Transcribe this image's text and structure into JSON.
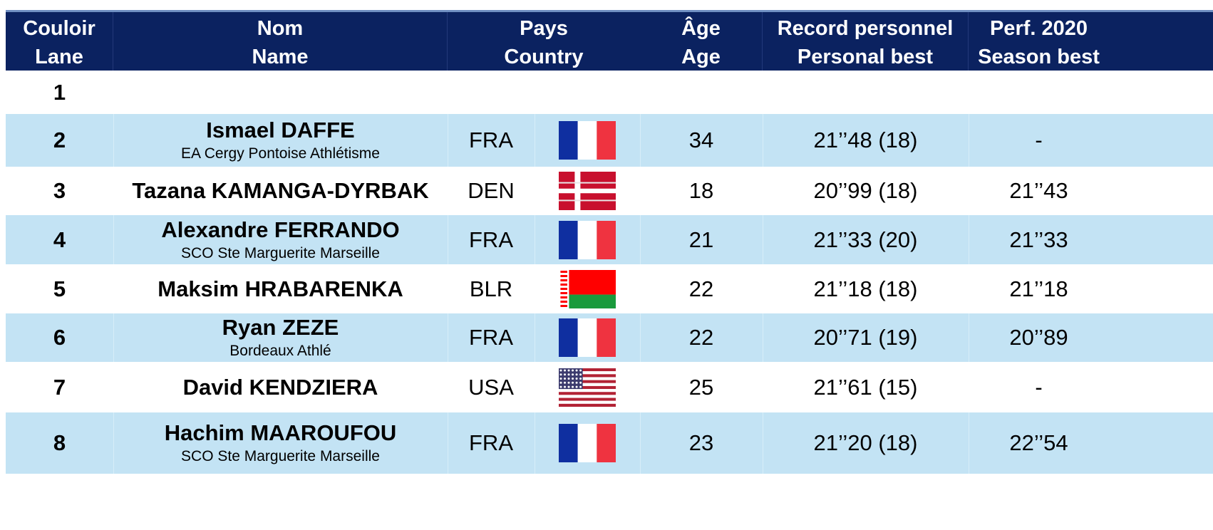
{
  "header": {
    "lane": [
      "Couloir",
      "Lane"
    ],
    "name": [
      "Nom",
      "Name"
    ],
    "country": [
      "Pays",
      "Country"
    ],
    "age": [
      "Âge",
      "Age"
    ],
    "pb": [
      "Record personnel",
      "Personal best"
    ],
    "sb": [
      "Perf. 2020",
      "Season best"
    ]
  },
  "rows": [
    {
      "lane": "1",
      "name": "",
      "club": "",
      "country": "",
      "flag": "",
      "age": "",
      "pb": "",
      "sb": ""
    },
    {
      "lane": "2",
      "name": "Ismael DAFFE",
      "club": "EA Cergy Pontoise Athlétisme",
      "country": "FRA",
      "flag": "france-flag",
      "age": "34",
      "pb": "21’’48 (18)",
      "sb": "-"
    },
    {
      "lane": "3",
      "name": "Tazana KAMANGA-DYRBAK",
      "club": "",
      "country": "DEN",
      "flag": "denmark-flag",
      "age": "18",
      "pb": "20’’99 (18)",
      "sb": "21’’43"
    },
    {
      "lane": "4",
      "name": "Alexandre FERRANDO",
      "club": "SCO Ste Marguerite Marseille",
      "country": "FRA",
      "flag": "france-flag",
      "age": "21",
      "pb": "21’’33 (20)",
      "sb": "21’’33"
    },
    {
      "lane": "5",
      "name": "Maksim HRABARENKA",
      "club": "",
      "country": "BLR",
      "flag": "belarus-flag",
      "age": "22",
      "pb": "21’’18 (18)",
      "sb": "21’’18"
    },
    {
      "lane": "6",
      "name": "Ryan ZEZE",
      "club": "Bordeaux Athlé",
      "country": "FRA",
      "flag": "france-flag",
      "age": "22",
      "pb": "20’’71 (19)",
      "sb": "20’’89"
    },
    {
      "lane": "7",
      "name": "David KENDZIERA",
      "club": "",
      "country": "USA",
      "flag": "usa-flag",
      "age": "25",
      "pb": "21’’61 (15)",
      "sb": "-"
    },
    {
      "lane": "8",
      "name": "Hachim MAAROUFOU",
      "club": "SCO Ste Marguerite Marseille",
      "country": "FRA",
      "flag": "france-flag",
      "age": "23",
      "pb": "21’’20 (18)",
      "sb": "22’’54"
    }
  ],
  "colors": {
    "header_bg": "#0b2260",
    "row_alt_bg": "#c3e3f4",
    "france_blue": "#0f2fa0",
    "france_red": "#ef3340",
    "denmark_red": "#c8102e",
    "belarus_red": "#ff0000",
    "belarus_green": "#199a3c"
  }
}
